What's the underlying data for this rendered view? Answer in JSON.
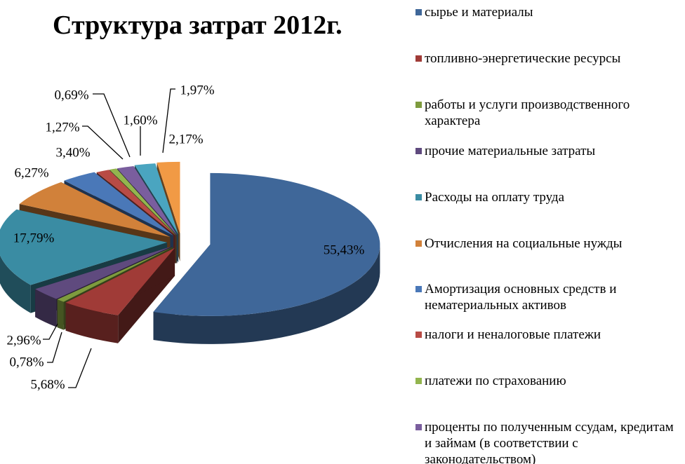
{
  "chart_data": {
    "type": "pie",
    "title": "Структура затрат 2012г.",
    "legend_position": "right",
    "exploded": true,
    "three_d": true,
    "series": [
      {
        "name": "сырье и материалы",
        "value": 55.43,
        "label": "55,43%",
        "color": "#3F6799"
      },
      {
        "name": "топливно-энергетические ресурсы",
        "value": 5.68,
        "label": "5,68%",
        "color": "#A03B37"
      },
      {
        "name": "работы и услуги производственного характера",
        "value": 0.78,
        "label": "0,78%",
        "color": "#7E9B3E"
      },
      {
        "name": "прочие материальные затраты",
        "value": 2.96,
        "label": "2,96%",
        "color": "#5F4A7E"
      },
      {
        "name": "Расходы на оплату труда",
        "value": 17.79,
        "label": "17,79%",
        "color": "#3A8CA3"
      },
      {
        "name": "Отчисления на социальные нужды",
        "value": 6.27,
        "label": "6,27%",
        "color": "#D1813A"
      },
      {
        "name": "Амортизация основных средств и нематериальных активов",
        "value": 3.4,
        "label": "3,40%",
        "color": "#4A78B8"
      },
      {
        "name": "налоги и неналоговые платежи",
        "value": 1.27,
        "label": "1,27%",
        "color": "#B84B45"
      },
      {
        "name": "платежи по страхованию",
        "value": 0.69,
        "label": "0,69%",
        "color": "#93B54E"
      },
      {
        "name": "проценты по полученным ссудам, кредитам и займам (в соответствии с законодательством)",
        "value": 1.6,
        "label": "1,60%",
        "color": "#7A5E9E"
      },
      {
        "name": "",
        "value": 1.97,
        "label": "1,97%",
        "color": "#4AA5C0"
      },
      {
        "name": "",
        "value": 2.17,
        "label": "2,17%",
        "color": "#F19A45"
      }
    ]
  }
}
